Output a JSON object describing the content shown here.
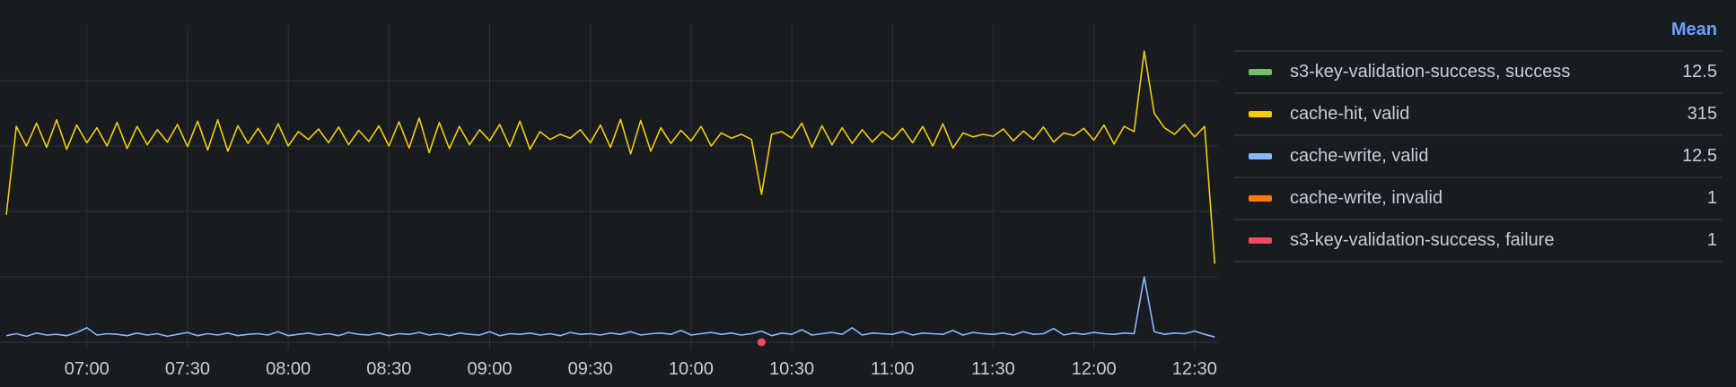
{
  "chart_data": {
    "type": "line",
    "title": "",
    "xlabel": "",
    "ylabel": "",
    "x_start": "06:36",
    "x_step_minutes": 3,
    "x_ticks": [
      "07:00",
      "07:30",
      "08:00",
      "08:30",
      "09:00",
      "09:30",
      "10:00",
      "10:30",
      "11:00",
      "11:30",
      "12:00",
      "12:30"
    ],
    "x_range": [
      "06:36",
      "12:37"
    ],
    "ylim": [
      0,
      500
    ],
    "y_grid": [
      100,
      200,
      300,
      400
    ],
    "y_tick_labels_shown": false,
    "grid": true,
    "legend_placement": "right",
    "legend_header": "Mean",
    "legend": [
      {
        "name": "s3-key-validation-success, success",
        "color": "#73bf69",
        "mean": "12.5"
      },
      {
        "name": "cache-hit, valid",
        "color": "#f2cc0c",
        "mean": "315"
      },
      {
        "name": "cache-write, valid",
        "color": "#8ab8ff",
        "mean": "12.5"
      },
      {
        "name": "cache-write, invalid",
        "color": "#ff780a",
        "mean": "1"
      },
      {
        "name": "s3-key-validation-success, failure",
        "color": "#f2495c",
        "mean": "1"
      }
    ],
    "series": [
      {
        "name": "cache-hit, valid",
        "color": "#f2cc0c",
        "values": [
          195,
          330,
          300,
          335,
          298,
          340,
          295,
          332,
          305,
          328,
          300,
          336,
          296,
          330,
          302,
          325,
          306,
          333,
          299,
          338,
          294,
          340,
          292,
          331,
          304,
          327,
          303,
          334,
          300,
          322,
          310,
          326,
          305,
          329,
          302,
          324,
          307,
          331,
          300,
          337,
          297,
          343,
          290,
          336,
          296,
          330,
          302,
          325,
          308,
          333,
          299,
          338,
          295,
          322,
          310,
          318,
          312,
          325,
          305,
          332,
          298,
          341,
          288,
          339,
          292,
          328,
          304,
          324,
          308,
          330,
          300,
          320,
          312,
          318,
          310,
          226,
          318,
          322,
          312,
          335,
          298,
          331,
          302,
          328,
          304,
          325,
          306,
          322,
          310,
          327,
          305,
          330,
          300,
          334,
          297,
          320,
          314,
          318,
          315,
          326,
          308,
          323,
          310,
          329,
          306,
          320,
          316,
          327,
          309,
          332,
          303,
          330,
          322,
          445,
          350,
          328,
          318,
          333,
          314,
          330,
          120
        ]
      },
      {
        "name": "cache-write, valid",
        "color": "#8ab8ff",
        "values": [
          10,
          13,
          9,
          14,
          11,
          12,
          10,
          15,
          22,
          11,
          13,
          12,
          10,
          14,
          11,
          13,
          9,
          12,
          15,
          10,
          13,
          11,
          14,
          10,
          12,
          13,
          11,
          16,
          10,
          12,
          14,
          11,
          13,
          10,
          15,
          12,
          11,
          14,
          10,
          13,
          12,
          15,
          11,
          13,
          10,
          14,
          12,
          11,
          16,
          10,
          13,
          12,
          14,
          11,
          13,
          10,
          15,
          12,
          13,
          11,
          14,
          12,
          16,
          11,
          13,
          14,
          12,
          18,
          11,
          13,
          15,
          12,
          14,
          11,
          13,
          17,
          10,
          14,
          12,
          19,
          11,
          13,
          15,
          12,
          22,
          11,
          14,
          13,
          12,
          16,
          11,
          14,
          13,
          12,
          18,
          11,
          15,
          13,
          12,
          14,
          11,
          16,
          12,
          13,
          21,
          11,
          14,
          12,
          15,
          13,
          12,
          14,
          13,
          100,
          16,
          12,
          14,
          13,
          17,
          12,
          8
        ]
      },
      {
        "name": "s3-key-validation-success, failure",
        "color": "#f2495c",
        "points": [
          {
            "x": "10:21",
            "y": 0
          }
        ]
      }
    ]
  }
}
